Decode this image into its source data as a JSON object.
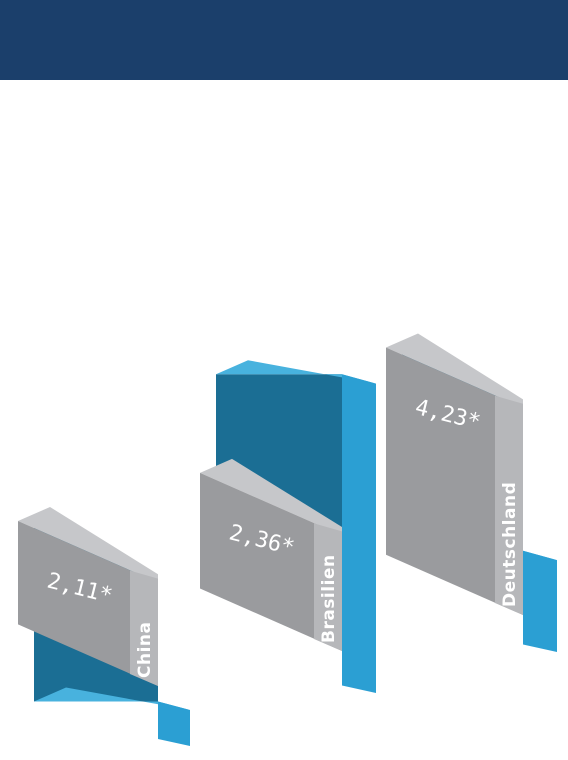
{
  "colors": {
    "header": "#1b3f6b",
    "grey_front": "#9a9b9e",
    "grey_side": "#b6b7ba",
    "grey_top": "#c6c7ca",
    "blue_front": "#1b6e94",
    "blue_side": "#2b9fd3",
    "blue_top": "#48b2de"
  },
  "chart_data": {
    "type": "bar",
    "style": "3d-isometric",
    "categories": [
      "China",
      "Brasilien",
      "Deutschland"
    ],
    "series": [
      {
        "color": "grey",
        "values": [
          2.11,
          2.36,
          4.23
        ]
      },
      {
        "color": "blue",
        "values": [
          0.62,
          6.2,
          1.76
        ]
      }
    ],
    "data_labels": [
      "2,11*",
      "2,36*",
      "4,23*"
    ],
    "legend": "none",
    "grid": false
  }
}
